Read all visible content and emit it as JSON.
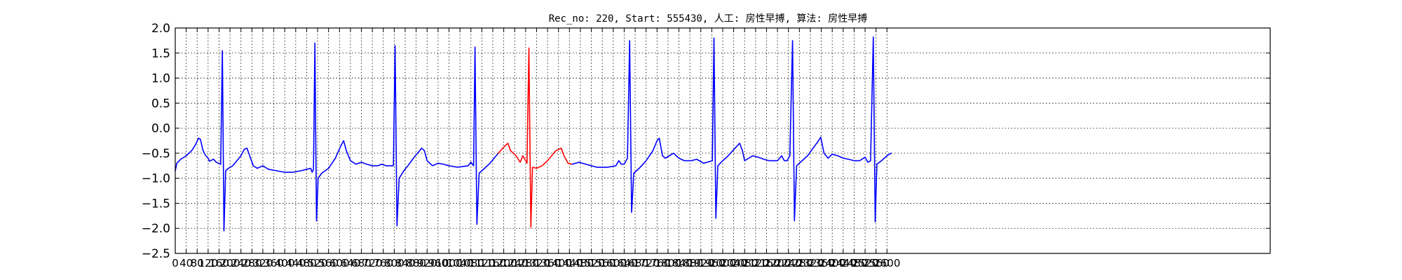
{
  "chart_data": {
    "type": "line",
    "title": "Rec_no: 220, Start: 555430, 人工: 房性早搏, 算法: 房性早搏",
    "xlabel": "",
    "ylabel": "",
    "xlim": [
      0,
      4000
    ],
    "ylim": [
      -2.5,
      2.0
    ],
    "grid": true,
    "yticks": [
      2.0,
      1.5,
      1.0,
      0.5,
      0.0,
      -0.5,
      -1.0,
      -1.5,
      -2.0,
      -2.5
    ],
    "ytick_labels": [
      "2.0",
      "1.5",
      "1.0",
      "0.5",
      "0.0",
      "−0.5",
      "−1.0",
      "−1.5",
      "−2.0",
      "−2.5"
    ],
    "xticks": [
      0,
      40,
      80,
      120,
      160,
      200,
      240,
      280,
      320,
      360,
      400,
      440,
      480,
      520,
      560,
      600,
      640,
      680,
      720,
      760,
      800,
      840,
      880,
      920,
      960,
      1000,
      1040,
      1080,
      1120,
      1160,
      1200,
      1240,
      1280,
      1320,
      1360,
      1400,
      1440,
      1480,
      1520,
      1560,
      1600,
      1640,
      1680,
      1720,
      1760,
      1800,
      1840,
      1880,
      1920,
      1960,
      2000,
      2040,
      2080,
      2120,
      2160,
      2200,
      2240,
      2280,
      2320,
      2360,
      2400,
      2440,
      2480,
      2520,
      2560,
      2600
    ],
    "xtick_labels": [
      "0",
      "40",
      "80",
      "120",
      "160",
      "200",
      "240",
      "280",
      "320",
      "360",
      "400",
      "440",
      "480",
      "520",
      "560",
      "600",
      "640",
      "680",
      "720",
      "760",
      "800",
      "840",
      "880",
      "920",
      "960",
      "1000",
      "1040",
      "1080",
      "1120",
      "1160",
      "1200",
      "1240",
      "1280",
      "1320",
      "1360",
      "1400",
      "1440",
      "1480",
      "1520",
      "1560",
      "1600",
      "1640",
      "1680",
      "1720",
      "1760",
      "1800",
      "1840",
      "1880",
      "1920",
      "1960",
      "2000",
      "2040",
      "2080",
      "2120",
      "2160",
      "2200",
      "2240",
      "2280",
      "2320",
      "2360",
      "2400",
      "2440",
      "2480",
      "2520",
      "2560",
      "2600"
    ],
    "series": [
      {
        "color": "#0000ff",
        "points": [
          [
            0,
            -0.85
          ],
          [
            6,
            -0.7
          ],
          [
            20,
            -0.62
          ],
          [
            40,
            -0.55
          ],
          [
            60,
            -0.45
          ],
          [
            75,
            -0.32
          ],
          [
            85,
            -0.2
          ],
          [
            92,
            -0.22
          ],
          [
            100,
            -0.42
          ],
          [
            106,
            -0.5
          ],
          [
            112,
            -0.55
          ],
          [
            120,
            -0.6
          ],
          [
            125,
            -0.66
          ],
          [
            140,
            -0.62
          ],
          [
            150,
            -0.68
          ],
          [
            166,
            -0.72
          ],
          [
            172,
            1.55
          ],
          [
            178,
            -2.05
          ],
          [
            184,
            -0.85
          ],
          [
            194,
            -0.8
          ],
          [
            210,
            -0.75
          ],
          [
            225,
            -0.65
          ],
          [
            240,
            -0.55
          ],
          [
            252,
            -0.42
          ],
          [
            262,
            -0.4
          ],
          [
            272,
            -0.55
          ],
          [
            285,
            -0.75
          ],
          [
            300,
            -0.8
          ],
          [
            320,
            -0.75
          ],
          [
            340,
            -0.82
          ],
          [
            370,
            -0.85
          ],
          [
            400,
            -0.88
          ],
          [
            430,
            -0.88
          ],
          [
            460,
            -0.85
          ],
          [
            480,
            -0.82
          ],
          [
            495,
            -0.8
          ],
          [
            500,
            -0.88
          ],
          [
            505,
            -0.82
          ],
          [
            510,
            1.7
          ],
          [
            516,
            -1.85
          ],
          [
            522,
            -1.0
          ],
          [
            535,
            -0.9
          ],
          [
            560,
            -0.8
          ],
          [
            585,
            -0.6
          ],
          [
            605,
            -0.35
          ],
          [
            615,
            -0.25
          ],
          [
            625,
            -0.45
          ],
          [
            640,
            -0.65
          ],
          [
            660,
            -0.72
          ],
          [
            680,
            -0.68
          ],
          [
            700,
            -0.72
          ],
          [
            720,
            -0.75
          ],
          [
            740,
            -0.75
          ],
          [
            755,
            -0.72
          ],
          [
            770,
            -0.75
          ],
          [
            797,
            -0.75
          ],
          [
            803,
            1.65
          ],
          [
            810,
            -1.95
          ],
          [
            818,
            -1.0
          ],
          [
            835,
            -0.85
          ],
          [
            850,
            -0.75
          ],
          [
            870,
            -0.6
          ],
          [
            885,
            -0.5
          ],
          [
            900,
            -0.4
          ],
          [
            910,
            -0.45
          ],
          [
            920,
            -0.65
          ],
          [
            940,
            -0.75
          ],
          [
            960,
            -0.7
          ],
          [
            980,
            -0.72
          ],
          [
            1000,
            -0.75
          ],
          [
            1030,
            -0.78
          ],
          [
            1070,
            -0.75
          ],
          [
            1080,
            -0.68
          ],
          [
            1090,
            -0.75
          ],
          [
            1095,
            1.62
          ],
          [
            1102,
            -1.92
          ],
          [
            1110,
            -0.9
          ],
          [
            1130,
            -0.8
          ],
          [
            1150,
            -0.7
          ],
          [
            1165,
            -0.6
          ],
          [
            1180,
            -0.5
          ]
        ]
      },
      {
        "color": "#ff0000",
        "points": [
          [
            1180,
            -0.5
          ],
          [
            1200,
            -0.38
          ],
          [
            1215,
            -0.3
          ],
          [
            1225,
            -0.45
          ],
          [
            1235,
            -0.5
          ],
          [
            1245,
            -0.55
          ],
          [
            1260,
            -0.68
          ],
          [
            1270,
            -0.55
          ],
          [
            1285,
            -0.7
          ],
          [
            1292,
            1.6
          ],
          [
            1299,
            -1.98
          ],
          [
            1305,
            -0.78
          ],
          [
            1320,
            -0.8
          ],
          [
            1340,
            -0.75
          ],
          [
            1360,
            -0.65
          ],
          [
            1375,
            -0.55
          ],
          [
            1390,
            -0.45
          ],
          [
            1410,
            -0.4
          ],
          [
            1420,
            -0.55
          ],
          [
            1435,
            -0.7
          ],
          [
            1450,
            -0.72
          ]
        ]
      },
      {
        "color": "#0000ff",
        "points": [
          [
            1450,
            -0.72
          ],
          [
            1475,
            -0.68
          ],
          [
            1500,
            -0.72
          ],
          [
            1520,
            -0.75
          ],
          [
            1540,
            -0.78
          ],
          [
            1580,
            -0.78
          ],
          [
            1610,
            -0.75
          ],
          [
            1620,
            -0.65
          ],
          [
            1630,
            -0.72
          ],
          [
            1640,
            -0.72
          ],
          [
            1652,
            -0.6
          ],
          [
            1660,
            1.75
          ],
          [
            1667,
            -1.68
          ],
          [
            1675,
            -0.9
          ],
          [
            1695,
            -0.8
          ],
          [
            1720,
            -0.65
          ],
          [
            1745,
            -0.45
          ],
          [
            1760,
            -0.25
          ],
          [
            1768,
            -0.2
          ],
          [
            1780,
            -0.55
          ],
          [
            1790,
            -0.6
          ],
          [
            1805,
            -0.55
          ],
          [
            1820,
            -0.5
          ],
          [
            1840,
            -0.6
          ],
          [
            1860,
            -0.65
          ],
          [
            1885,
            -0.65
          ],
          [
            1905,
            -0.62
          ],
          [
            1930,
            -0.7
          ],
          [
            1962,
            -0.65
          ],
          [
            1968,
            1.8
          ],
          [
            1975,
            -1.8
          ],
          [
            1982,
            -0.75
          ],
          [
            2000,
            -0.65
          ],
          [
            2020,
            -0.55
          ],
          [
            2045,
            -0.4
          ],
          [
            2062,
            -0.3
          ],
          [
            2072,
            -0.45
          ],
          [
            2080,
            -0.65
          ],
          [
            2095,
            -0.6
          ],
          [
            2110,
            -0.55
          ],
          [
            2130,
            -0.58
          ],
          [
            2150,
            -0.62
          ],
          [
            2170,
            -0.65
          ],
          [
            2200,
            -0.65
          ],
          [
            2215,
            -0.55
          ],
          [
            2225,
            -0.65
          ],
          [
            2235,
            -0.65
          ],
          [
            2245,
            -0.55
          ],
          [
            2255,
            1.75
          ],
          [
            2262,
            -1.85
          ],
          [
            2270,
            -0.75
          ],
          [
            2290,
            -0.65
          ],
          [
            2310,
            -0.55
          ],
          [
            2330,
            -0.4
          ],
          [
            2350,
            -0.25
          ],
          [
            2358,
            -0.18
          ],
          [
            2370,
            -0.5
          ],
          [
            2385,
            -0.6
          ],
          [
            2400,
            -0.52
          ],
          [
            2420,
            -0.55
          ],
          [
            2440,
            -0.6
          ],
          [
            2460,
            -0.62
          ],
          [
            2480,
            -0.65
          ],
          [
            2500,
            -0.65
          ],
          [
            2520,
            -0.58
          ],
          [
            2530,
            -0.68
          ],
          [
            2540,
            -0.65
          ],
          [
            2550,
            1.82
          ],
          [
            2557,
            -1.87
          ],
          [
            2563,
            -0.72
          ],
          [
            2580,
            -0.65
          ],
          [
            2600,
            -0.55
          ],
          [
            2615,
            -0.5
          ]
        ]
      }
    ]
  }
}
